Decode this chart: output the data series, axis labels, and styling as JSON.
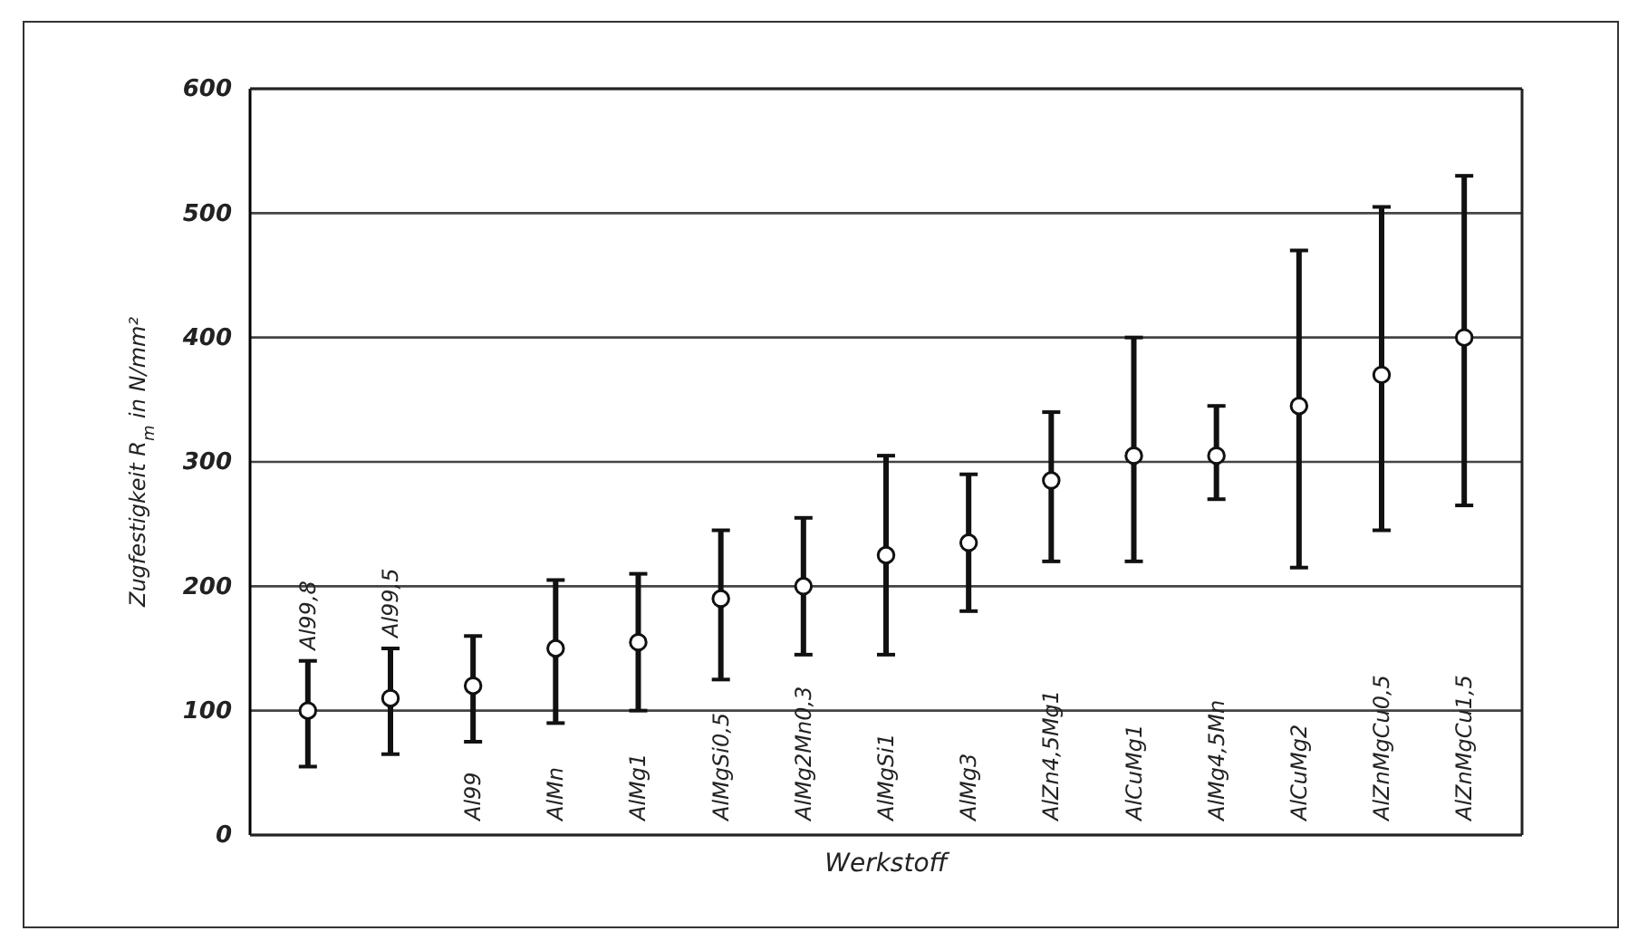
{
  "chart_data": {
    "type": "scatter",
    "xlabel": "Werkstoff",
    "ylabel": "Zugfestigkeit R$_{m}$ in N/mm²",
    "categories": [
      "Al99,8",
      "Al99,5",
      "Al99",
      "AlMn",
      "AlMg1",
      "AlMgSi0,5",
      "AlMg2Mn0,3",
      "AlMgSi1",
      "AlMg3",
      "AlZn4,5Mg1",
      "AlCuMg1",
      "AlMg4,5Mn",
      "AlCuMg2",
      "AlZnMgCu0,5",
      "AlZnMgCu1,5"
    ],
    "values": [
      100,
      110,
      120,
      150,
      155,
      190,
      200,
      225,
      235,
      285,
      305,
      305,
      345,
      370,
      400
    ],
    "errors": [
      [
        55,
        140
      ],
      [
        65,
        150
      ],
      [
        75,
        160
      ],
      [
        90,
        205
      ],
      [
        100,
        210
      ],
      [
        125,
        245
      ],
      [
        145,
        255
      ],
      [
        145,
        305
      ],
      [
        180,
        290
      ],
      [
        220,
        340
      ],
      [
        220,
        400
      ],
      [
        270,
        345
      ],
      [
        215,
        470
      ],
      [
        245,
        505
      ],
      [
        265,
        530
      ]
    ],
    "color": "#111111",
    "marker": "circle",
    "ylim": [
      0,
      600
    ],
    "yticks": [
      0,
      100,
      200,
      300,
      400,
      500,
      600
    ],
    "grid": "y"
  }
}
